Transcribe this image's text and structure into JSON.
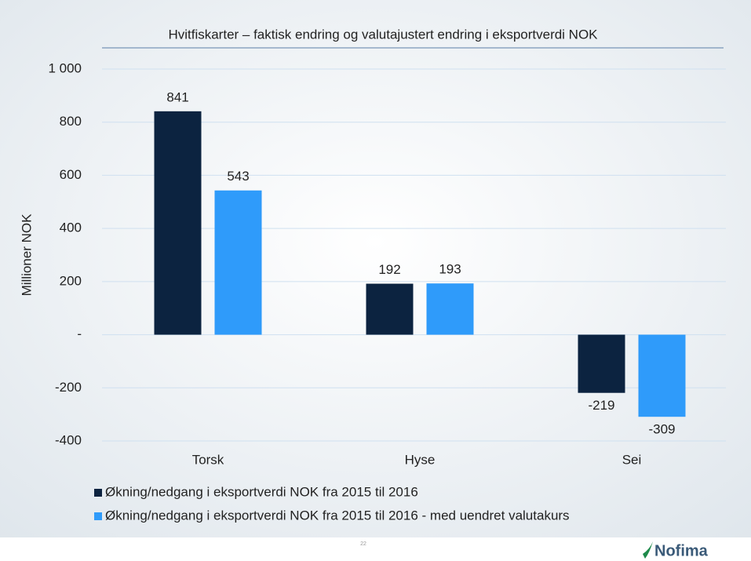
{
  "chart_data": {
    "type": "bar",
    "title": "Hvitfiskarter – faktisk endring og valutajustert endring i eksportverdi NOK",
    "y_label": "Millioner NOK",
    "categories": [
      "Torsk",
      "Hyse",
      "Sei"
    ],
    "series": [
      {
        "name": "Økning/nedgang i eksportverdi NOK fra 2015 til 2016",
        "color": "#0c2340",
        "values": [
          841,
          192,
          -219
        ]
      },
      {
        "name": "Økning/nedgang i eksportverdi NOK fra 2015 til 2016 - med uendret valutakurs",
        "color": "#2f9bfa",
        "values": [
          543,
          193,
          -309
        ]
      }
    ],
    "ylim": [
      -400,
      1000
    ],
    "yticks": [
      -400,
      -200,
      {
        "value": 0,
        "label": "-"
      },
      200,
      400,
      600,
      800,
      {
        "value": 1000,
        "label": "1 000"
      }
    ],
    "grid": true,
    "legend": "bottom"
  },
  "footer": {
    "page_number": "22",
    "logo": "Nofima"
  }
}
